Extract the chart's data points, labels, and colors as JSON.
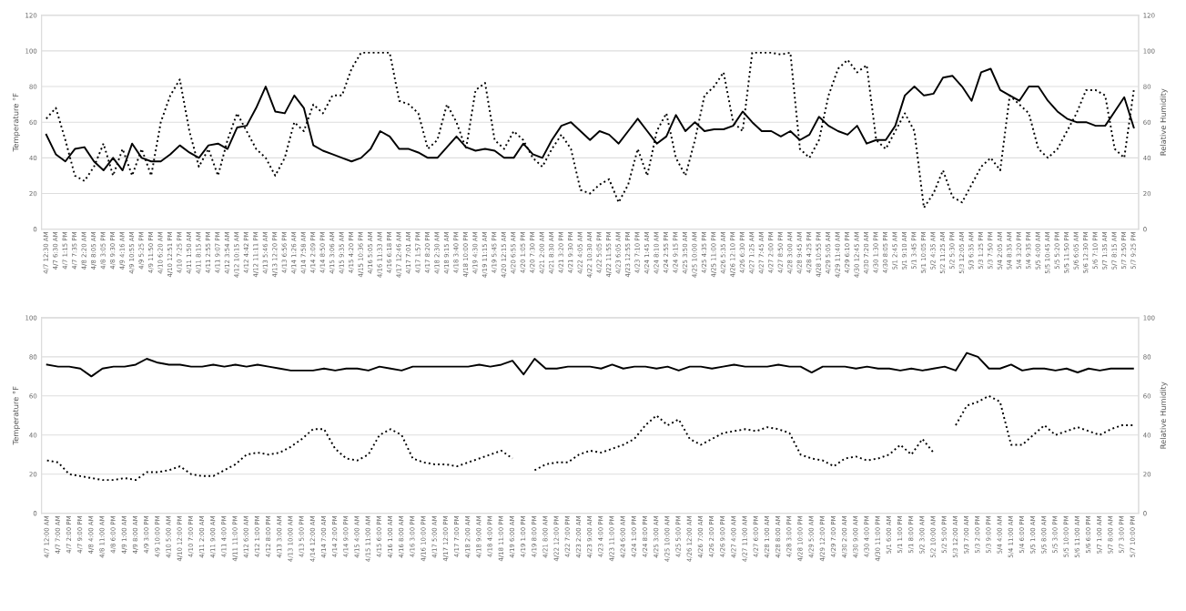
{
  "chart_data": [
    {
      "type": "line",
      "ylabel": "Temperature °F",
      "y2label": "Relative Humidity",
      "ylim": [
        0,
        120
      ],
      "yticks": [
        0,
        20,
        40,
        60,
        80,
        100,
        120
      ],
      "y2lim": [
        0,
        120
      ],
      "y2ticks": [
        0,
        20,
        40,
        60,
        80,
        100,
        120
      ],
      "grid": "y",
      "categories": [
        "4/7 12:30 AM",
        "4/7 6:30 AM",
        "4/7 1:15 PM",
        "4/7 7:35 PM",
        "4/8 2:20 AM",
        "4/8 8:05 AM",
        "4/8 3:05 PM",
        "4/8 9:30 PM",
        "4/9 4:16 AM",
        "4/9 10:55 AM",
        "4/9 5:25 PM",
        "4/9 11:50 PM",
        "4/10 6:20 AM",
        "4/10 12:51 PM",
        "4/10 7:25 PM",
        "4/11 1:50 AM",
        "4/11 8:15 AM",
        "4/11 2:55 PM",
        "4/11 9:07 PM",
        "4/12 3:54 AM",
        "4/12 10:15 AM",
        "4/12 4:42 PM",
        "4/12 11:11 PM",
        "4/13 5:46 AM",
        "4/13 12:20 PM",
        "4/13 6:56 PM",
        "4/14 1:26 AM",
        "4/14 7:58 AM",
        "4/14 2:09 PM",
        "4/14 8:50 PM",
        "4/15 3:06 AM",
        "4/15 9:35 AM",
        "4/15 4:20 PM",
        "4/15 10:36 PM",
        "4/16 5:05 AM",
        "4/16 11:33 AM",
        "4/16 6:18 PM",
        "4/17 12:46 AM",
        "4/17 7:01 AM",
        "4/17 1:57 PM",
        "4/17 8:20 PM",
        "4/18 2:30 AM",
        "4/18 9:15 AM",
        "4/18 3:40 PM",
        "4/18 10:00 PM",
        "4/19 4:30 AM",
        "4/19 11:15 AM",
        "4/19 5:45 PM",
        "4/20 12:15 AM",
        "4/20 6:55 AM",
        "4/20 1:05 PM",
        "4/20 7:30 PM",
        "4/21 2:00 AM",
        "4/21 8:30 AM",
        "4/21 3:20 PM",
        "4/21 9:30 PM",
        "4/22 4:05 AM",
        "4/22 10:30 AM",
        "4/22 5:05 PM",
        "4/22 11:55 PM",
        "4/23 6:05 AM",
        "4/23 12:55 PM",
        "4/23 7:10 PM",
        "4/24 1:45 AM",
        "4/24 8:10 AM",
        "4/24 2:55 PM",
        "4/24 9:15 PM",
        "4/25 3:50 AM",
        "4/25 10:00 AM",
        "4/25 4:35 PM",
        "4/25 11:00 PM",
        "4/26 5:35 AM",
        "4/26 12:10 PM",
        "4/26 6:30 PM",
        "4/27 1:25 AM",
        "4/27 7:45 AM",
        "4/27 2:00 PM",
        "4/27 8:50 PM",
        "4/28 3:00 AM",
        "4/28 9:45 AM",
        "4/28 4:25 PM",
        "4/28 10:55 PM",
        "4/29 5:05 AM",
        "4/29 11:40 AM",
        "4/29 6:10 PM",
        "4/30 12:45 AM",
        "4/30 7:20 AM",
        "4/30 1:30 PM",
        "4/30 8:05 PM",
        "5/1 2:45 AM",
        "5/1 9:10 AM",
        "5/1 3:45 PM",
        "5/1 10:05 PM",
        "5/2 4:35 AM",
        "5/2 11:25 AM",
        "5/2 5:30 PM",
        "5/3 12:05 AM",
        "5/3 6:35 AM",
        "5/3 1:25 PM",
        "5/3 7:50 PM",
        "5/4 2:05 AM",
        "5/4 8:35 AM",
        "5/4 3:20 PM",
        "5/4 9:35 PM",
        "5/5 4:00 AM",
        "5/5 10:45 AM",
        "5/5 5:20 PM",
        "5/5 11:50 PM",
        "5/6 6:05 AM",
        "5/6 12:30 PM",
        "5/6 7:10 PM",
        "5/7 1:35 AM",
        "5/7 8:15 AM",
        "5/7 2:50 PM",
        "5/7 9:25 PM"
      ],
      "series": [
        {
          "color": "#000000",
          "line_style": "solid",
          "values": [
            53,
            42,
            38,
            45,
            46,
            38,
            33,
            40,
            33,
            48,
            40,
            38,
            38,
            42,
            47,
            43,
            40,
            47,
            48,
            45,
            57,
            58,
            68,
            80,
            66,
            65,
            75,
            68,
            47,
            44,
            42,
            40,
            38,
            40,
            45,
            55,
            52,
            45,
            45,
            43,
            40,
            40,
            46,
            52,
            46,
            44,
            45,
            44,
            40,
            40,
            48,
            42,
            40,
            50,
            58,
            60,
            55,
            50,
            55,
            53,
            48,
            55,
            62,
            55,
            48,
            52,
            64,
            55,
            60,
            55,
            56,
            56,
            58,
            66,
            60,
            55,
            55,
            52,
            55,
            50,
            53,
            63,
            58,
            55,
            53,
            58,
            48,
            50,
            50,
            58,
            75,
            80,
            75,
            76,
            85,
            86,
            80,
            72,
            88,
            90,
            78,
            75,
            72,
            80,
            80,
            72,
            66,
            62,
            60,
            60,
            58,
            58,
            66,
            74,
            57
          ]
        },
        {
          "color": "#000000",
          "line_style": "dotted",
          "values": [
            62,
            68,
            50,
            30,
            27,
            35,
            48,
            30,
            45,
            30,
            45,
            30,
            60,
            75,
            84,
            55,
            35,
            45,
            30,
            50,
            65,
            55,
            45,
            40,
            30,
            40,
            60,
            55,
            70,
            65,
            75,
            75,
            90,
            99,
            99,
            99,
            99,
            72,
            70,
            65,
            45,
            50,
            70,
            60,
            45,
            78,
            82,
            50,
            45,
            55,
            50,
            40,
            35,
            45,
            53,
            45,
            22,
            20,
            25,
            28,
            15,
            25,
            45,
            30,
            55,
            65,
            40,
            30,
            50,
            75,
            80,
            88,
            60,
            55,
            99,
            99,
            99,
            98,
            99,
            45,
            40,
            50,
            75,
            90,
            95,
            88,
            92,
            50,
            45,
            55,
            65,
            55,
            12,
            20,
            33,
            18,
            15,
            25,
            35,
            40,
            33,
            75,
            70,
            65,
            45,
            40,
            45,
            55,
            65,
            78,
            78,
            75,
            45,
            40,
            78
          ]
        }
      ]
    },
    {
      "type": "line",
      "ylabel": "Temperature °F",
      "y2label": "Relative Humidity",
      "ylim": [
        0,
        100
      ],
      "yticks": [
        0,
        20,
        40,
        60,
        80,
        100
      ],
      "y2lim": [
        0,
        100
      ],
      "y2ticks": [
        0,
        20,
        40,
        60,
        80,
        100
      ],
      "grid": "y",
      "categories": [
        "4/7 12:00 AM",
        "4/7 7:00 AM",
        "4/7 2:00 PM",
        "4/7 9:00 PM",
        "4/8 4:00 AM",
        "4/8 11:00 AM",
        "4/8 6:00 PM",
        "4/9 1:00 AM",
        "4/9 8:00 AM",
        "4/9 3:00 PM",
        "4/9 10:00 PM",
        "4/10 5:00 AM",
        "4/10 12:00 PM",
        "4/10 7:00 PM",
        "4/11 2:00 AM",
        "4/11 9:00 AM",
        "4/11 4:00 PM",
        "4/11 11:00 PM",
        "4/12 6:00 AM",
        "4/12 1:00 PM",
        "4/12 8:00 PM",
        "4/13 3:00 AM",
        "4/13 10:00 AM",
        "4/13 5:00 PM",
        "4/14 12:00 AM",
        "4/14 7:00 AM",
        "4/14 2:00 PM",
        "4/14 9:00 PM",
        "4/15 4:00 AM",
        "4/15 11:00 AM",
        "4/15 6:00 PM",
        "4/16 1:00 AM",
        "4/16 8:00 AM",
        "4/16 3:00 PM",
        "4/16 10:00 PM",
        "4/17 5:00 AM",
        "4/17 12:00 PM",
        "4/17 7:00 PM",
        "4/18 2:00 AM",
        "4/18 9:00 AM",
        "4/18 4:00 PM",
        "4/18 11:00 PM",
        "4/19 6:00 AM",
        "4/19 1:00 PM",
        "4/19 8:00 PM",
        "4/21 8:00 AM",
        "4/22 12:00 PM",
        "4/22 7:00 PM",
        "4/23 2:00 AM",
        "4/23 9:00 AM",
        "4/23 4:00 PM",
        "4/23 11:00 PM",
        "4/24 6:00 AM",
        "4/24 1:00 PM",
        "4/24 8:00 PM",
        "4/25 3:00 AM",
        "4/25 10:00 AM",
        "4/25 5:00 PM",
        "4/26 12:00 AM",
        "4/26 7:00 AM",
        "4/26 2:00 PM",
        "4/26 9:00 PM",
        "4/27 4:00 AM",
        "4/27 11:00 AM",
        "4/27 6:00 PM",
        "4/28 1:00 AM",
        "4/28 8:00 AM",
        "4/28 3:00 PM",
        "4/28 10:00 PM",
        "4/29 5:00 AM",
        "4/29 12:00 PM",
        "4/29 7:00 PM",
        "4/30 2:00 AM",
        "4/30 9:00 AM",
        "4/30 4:00 PM",
        "4/30 11:00 PM",
        "5/1 6:00 AM",
        "5/1 1:00 PM",
        "5/1 8:00 PM",
        "5/2 3:00 AM",
        "5/2 10:00 AM",
        "5/2 5:00 PM",
        "5/3 12:00 AM",
        "5/3 7:00 AM",
        "5/3 2:00 PM",
        "5/3 9:00 PM",
        "5/4 4:00 AM",
        "5/4 11:00 AM",
        "5/4 6:00 PM",
        "5/5 1:00 AM",
        "5/5 8:00 AM",
        "5/5 3:00 PM",
        "5/5 10:00 PM",
        "5/6 11:00 AM",
        "5/6 6:00 PM",
        "5/7 1:00 AM",
        "5/7 8:00 AM",
        "5/7 3:00 PM",
        "5/7 10:00 PM"
      ],
      "series": [
        {
          "color": "#000000",
          "line_style": "solid",
          "values": [
            76,
            75,
            75,
            74,
            70,
            74,
            75,
            75,
            76,
            79,
            77,
            76,
            76,
            75,
            75,
            76,
            75,
            76,
            75,
            76,
            75,
            74,
            73,
            73,
            73,
            74,
            73,
            74,
            74,
            73,
            75,
            74,
            73,
            75,
            75,
            75,
            75,
            75,
            75,
            76,
            75,
            76,
            78,
            71,
            79,
            74,
            74,
            75,
            75,
            75,
            74,
            76,
            74,
            75,
            75,
            74,
            75,
            73,
            75,
            75,
            74,
            75,
            76,
            75,
            75,
            75,
            76,
            75,
            75,
            72,
            75,
            75,
            75,
            74,
            75,
            74,
            74,
            73,
            74,
            73,
            74,
            75,
            73,
            82,
            80,
            74,
            74,
            76,
            73,
            74,
            74,
            73,
            74,
            72,
            74,
            73,
            74,
            74,
            74
          ]
        },
        {
          "color": "#000000",
          "line_style": "dotted",
          "values": [
            27,
            26,
            20,
            19,
            18,
            17,
            17,
            18,
            17,
            21,
            21,
            22,
            24,
            20,
            19,
            19,
            22,
            25,
            30,
            31,
            30,
            31,
            34,
            38,
            43,
            43,
            33,
            28,
            27,
            30,
            40,
            43,
            40,
            28,
            26,
            25,
            25,
            24,
            26,
            28,
            30,
            32,
            28,
            null,
            22,
            25,
            26,
            26,
            30,
            32,
            31,
            33,
            35,
            38,
            45,
            50,
            45,
            48,
            38,
            35,
            38,
            41,
            42,
            43,
            42,
            44,
            43,
            41,
            30,
            28,
            27,
            24,
            28,
            29,
            27,
            28,
            30,
            35,
            30,
            38,
            31,
            null,
            45,
            55,
            57,
            60,
            57,
            35,
            35,
            40,
            45,
            40,
            42,
            44,
            42,
            40,
            43,
            45,
            45
          ]
        }
      ]
    }
  ]
}
